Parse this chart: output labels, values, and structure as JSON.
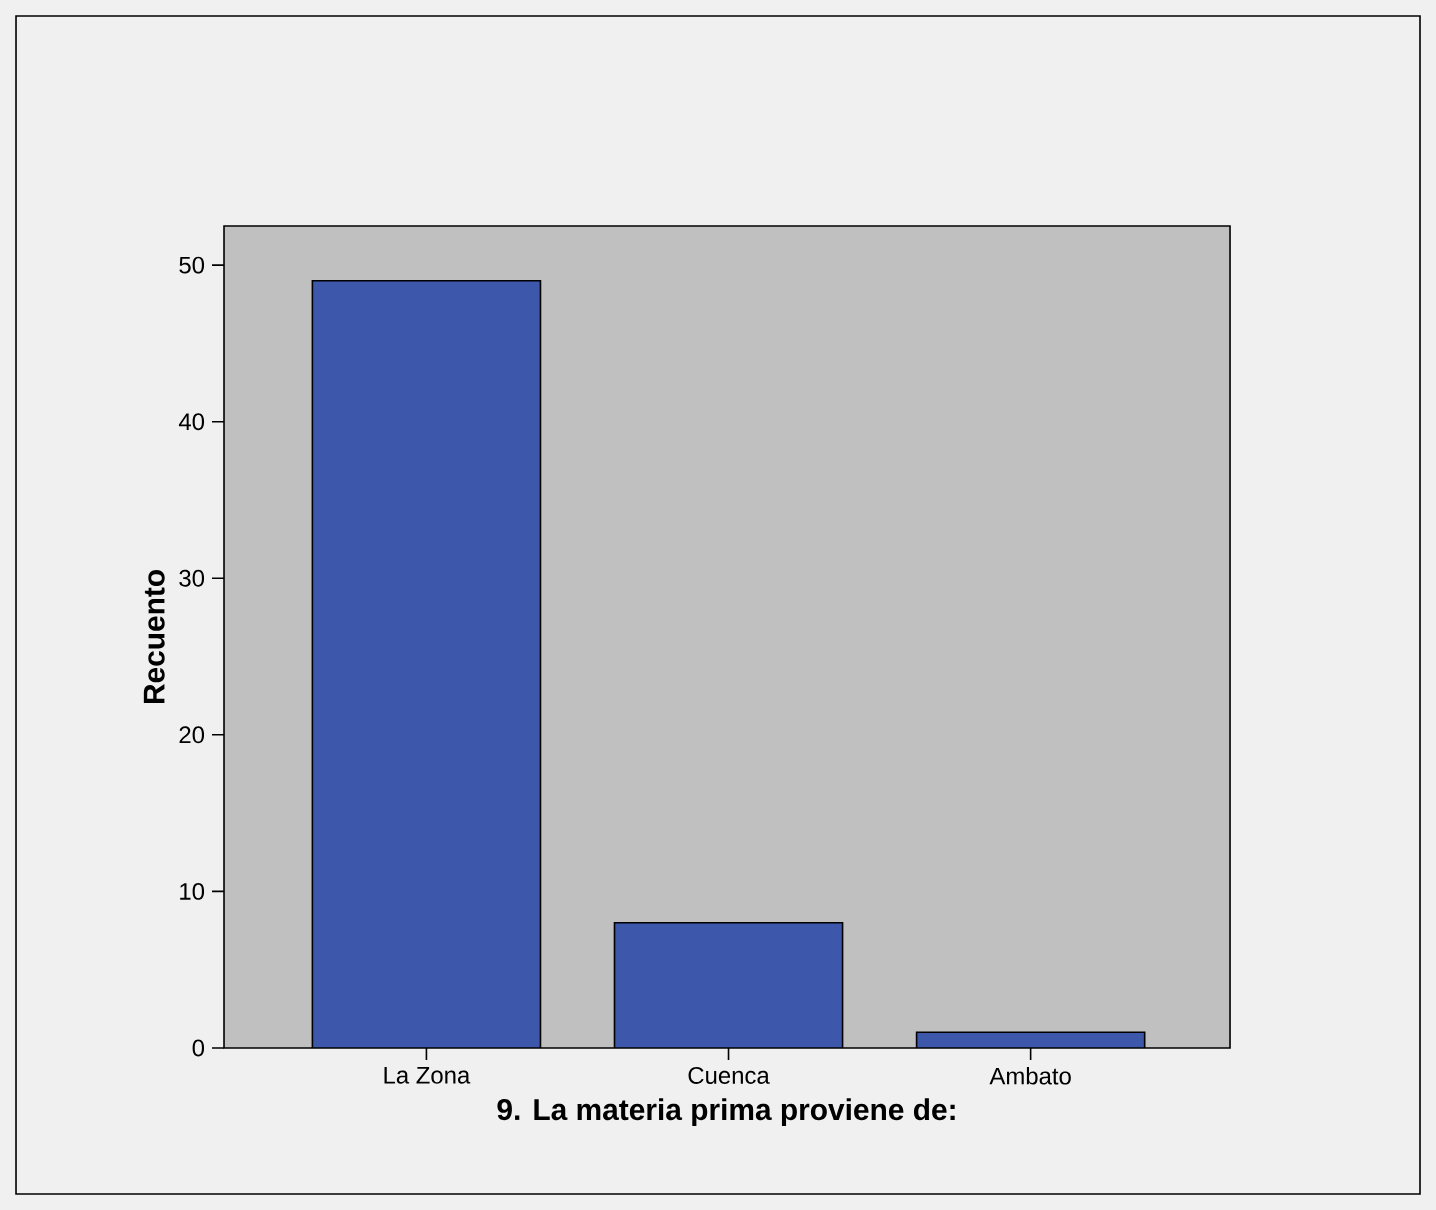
{
  "chart_data": {
    "type": "bar",
    "xlabel": "9. La materia prima proviene de:",
    "ylabel": "Recuento",
    "categories": [
      "La Zona",
      "Cuenca",
      "Ambato"
    ],
    "values": [
      49,
      8,
      1
    ],
    "color": "#3d57aa",
    "ylim": [
      0,
      52.5
    ],
    "yticks": [
      0,
      10,
      20,
      30,
      40,
      50
    ],
    "grid": false
  }
}
